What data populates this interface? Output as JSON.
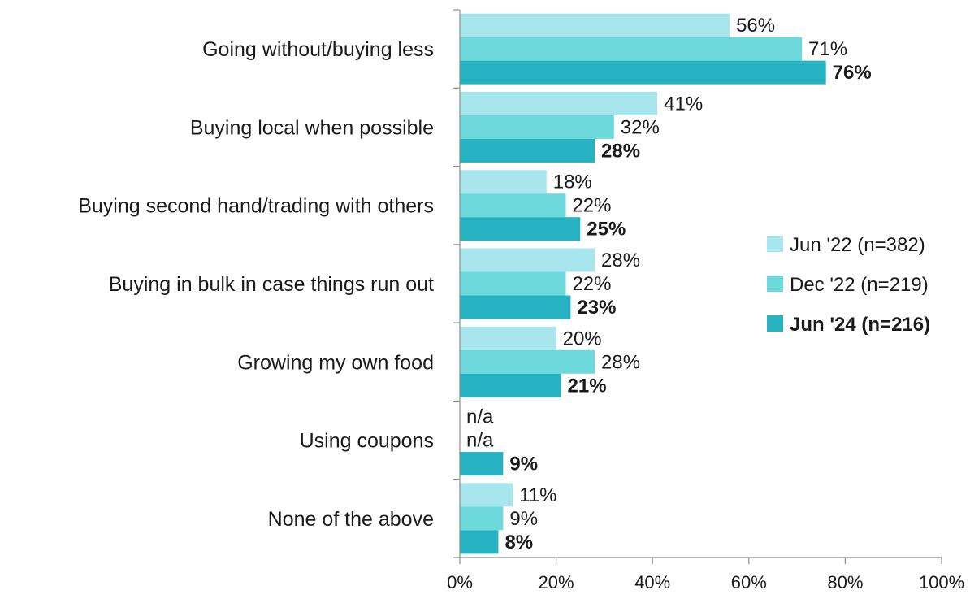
{
  "chart_data": {
    "type": "bar",
    "orientation": "horizontal",
    "categories": [
      "Going without/buying less",
      "Buying local when possible",
      "Buying second hand/trading with others",
      "Buying in bulk in case things run out",
      "Growing my own food",
      "Using coupons",
      "None of the above"
    ],
    "series": [
      {
        "name": "Jun '22 (n=382)",
        "color": "#a6e6ec",
        "bold": false,
        "values": [
          56,
          41,
          18,
          28,
          20,
          null,
          11
        ],
        "labels": [
          "56%",
          "41%",
          "18%",
          "28%",
          "20%",
          "n/a",
          "11%"
        ]
      },
      {
        "name": "Dec '22 (n=219)",
        "color": "#6ed9db",
        "bold": false,
        "values": [
          71,
          32,
          22,
          22,
          28,
          null,
          9
        ],
        "labels": [
          "71%",
          "32%",
          "22%",
          "22%",
          "28%",
          "n/a",
          "9%"
        ]
      },
      {
        "name": "Jun '24 (n=216)",
        "color": "#26b2c1",
        "bold": true,
        "values": [
          76,
          28,
          25,
          23,
          21,
          9,
          8
        ],
        "labels": [
          "76%",
          "28%",
          "25%",
          "23%",
          "21%",
          "9%",
          "8%"
        ]
      }
    ],
    "xlim": [
      0,
      100
    ],
    "xticks": [
      0,
      20,
      40,
      60,
      80,
      100
    ],
    "xtick_labels": [
      "0%",
      "20%",
      "40%",
      "60%",
      "80%",
      "100%"
    ],
    "grid": false,
    "legend_position": "right"
  }
}
